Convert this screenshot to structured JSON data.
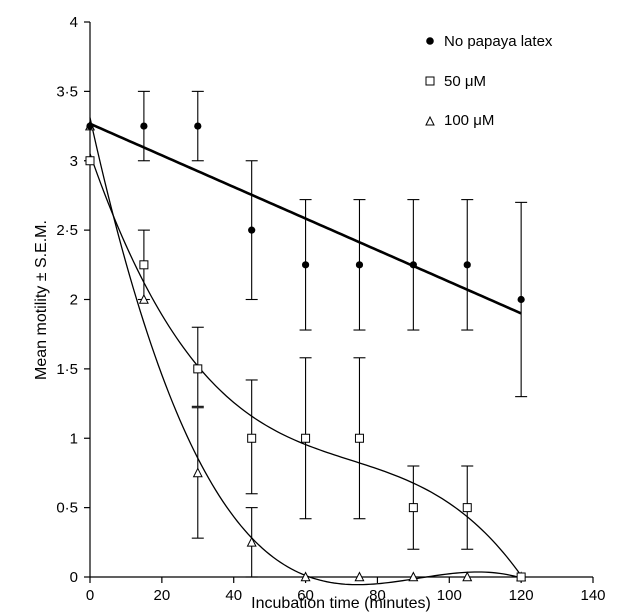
{
  "chart_data": {
    "type": "scatter",
    "xlabel": "Incubation time (minutes)",
    "ylabel": "Mean motility ± S.E.M.",
    "xlim": [
      0,
      140
    ],
    "ylim": [
      0,
      4
    ],
    "x_ticks": [
      0,
      20,
      40,
      60,
      80,
      100,
      120,
      140
    ],
    "y_ticks": [
      0,
      0.5,
      1,
      1.5,
      2,
      2.5,
      3,
      3.5,
      4
    ],
    "y_tick_labels": [
      "0",
      "0·5",
      "1",
      "1·5",
      "2",
      "2·5",
      "3",
      "3·5",
      "4"
    ],
    "legend_position": "top-right",
    "series": [
      {
        "name": "No papaya latex",
        "marker": "filled-circle",
        "x": [
          0,
          15,
          30,
          45,
          60,
          75,
          90,
          105,
          120
        ],
        "y": [
          3.25,
          3.25,
          3.25,
          2.5,
          2.25,
          2.25,
          2.25,
          2.25,
          2.0
        ],
        "err_low": [
          3.25,
          3.0,
          3.0,
          2.0,
          1.78,
          1.78,
          1.78,
          1.78,
          1.3
        ],
        "err_high": [
          3.25,
          3.5,
          3.5,
          3.0,
          2.72,
          2.72,
          2.72,
          2.72,
          2.7
        ],
        "fit": "linear"
      },
      {
        "name": "50 μM",
        "marker": "open-square",
        "x": [
          0,
          15,
          30,
          45,
          60,
          75,
          90,
          105,
          120
        ],
        "y": [
          3.0,
          2.25,
          1.5,
          1.0,
          1.0,
          1.0,
          0.5,
          0.5,
          0.0
        ],
        "err_low": [
          3.0,
          2.0,
          1.23,
          0.6,
          0.42,
          0.42,
          0.2,
          0.2,
          0.0
        ],
        "err_high": [
          3.0,
          2.5,
          1.8,
          1.42,
          1.58,
          1.58,
          0.8,
          0.8,
          0.0
        ],
        "fit": "polynomial"
      },
      {
        "name": "100 μM",
        "marker": "open-triangle",
        "x": [
          0,
          15,
          30,
          45,
          60,
          75,
          90,
          105,
          120
        ],
        "y": [
          3.25,
          2.0,
          0.75,
          0.25,
          0.0,
          0.0,
          0.0,
          0.0,
          0.0
        ],
        "err_low": [
          3.25,
          2.0,
          0.28,
          0.0,
          0.0,
          0.0,
          0.0,
          0.0,
          0.0
        ],
        "err_high": [
          3.25,
          2.0,
          1.22,
          0.5,
          0.0,
          0.0,
          0.0,
          0.0,
          0.0
        ],
        "fit": "polynomial"
      }
    ]
  }
}
